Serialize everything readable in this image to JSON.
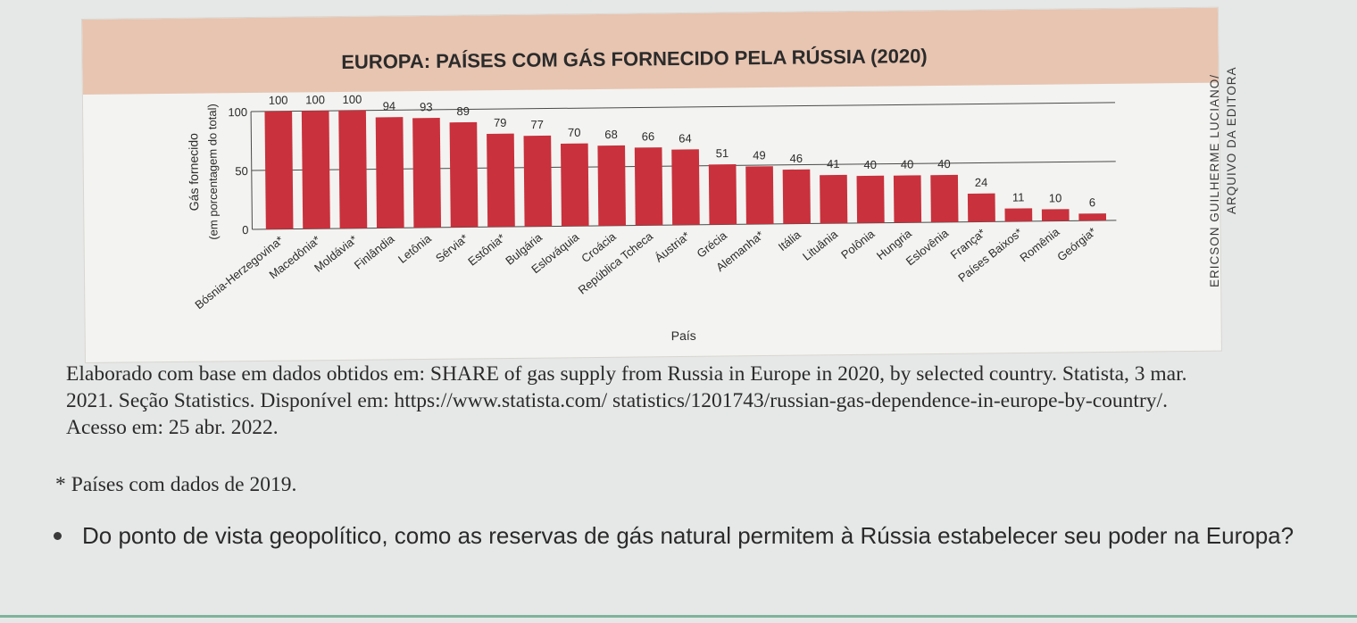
{
  "chart_data": {
    "type": "bar",
    "title": "EUROPA: PAÍSES COM GÁS FORNECIDO PELA RÚSSIA (2020)",
    "ylabel_line1": "Gás fornecido",
    "ylabel_line2": "(em porcentagem do total)",
    "xlabel": "País",
    "ylim": [
      0,
      100
    ],
    "yticks": [
      "0",
      "50",
      "100"
    ],
    "categories": [
      "Bósnia-Herzegovina*",
      "Macedônia*",
      "Moldávia*",
      "Finlândia",
      "Letônia",
      "Sérvia*",
      "Estônia*",
      "Bulgária",
      "Eslováquia",
      "Croácia",
      "República Tcheca",
      "Áustria*",
      "Grécia",
      "Alemanha*",
      "Itália",
      "Lituânia",
      "Polônia",
      "Hungria",
      "Eslovênia",
      "França*",
      "Países Baixos*",
      "Romênia",
      "Geórgia*"
    ],
    "values": [
      100,
      100,
      100,
      94,
      93,
      89,
      79,
      77,
      70,
      68,
      66,
      64,
      51,
      49,
      46,
      41,
      40,
      40,
      40,
      24,
      11,
      10,
      6
    ],
    "bar_color": "#c9313c",
    "header_color": "#e8c5b1"
  },
  "credit": {
    "line1": "ERICSON GUILHERME LUCIANO/",
    "line2": "ARQUIVO DA EDITORA"
  },
  "source_text": "Elaborado com base em dados obtidos em: SHARE of gas supply from Russia in Europe in 2020, by selected country. Statista, 3 mar. 2021. Seção Statistics. Disponível em: https://www.statista.com/ statistics/1201743/russian-gas-dependence-in-europe-by-country/. Acesso em: 25 abr. 2022.",
  "footnote": {
    "marker": "*",
    "text": "Países com dados de 2019."
  },
  "question": "Do ponto de vista geopolítico, como as reservas de gás natural permitem à Rússia estabelecer seu poder na Europa?"
}
